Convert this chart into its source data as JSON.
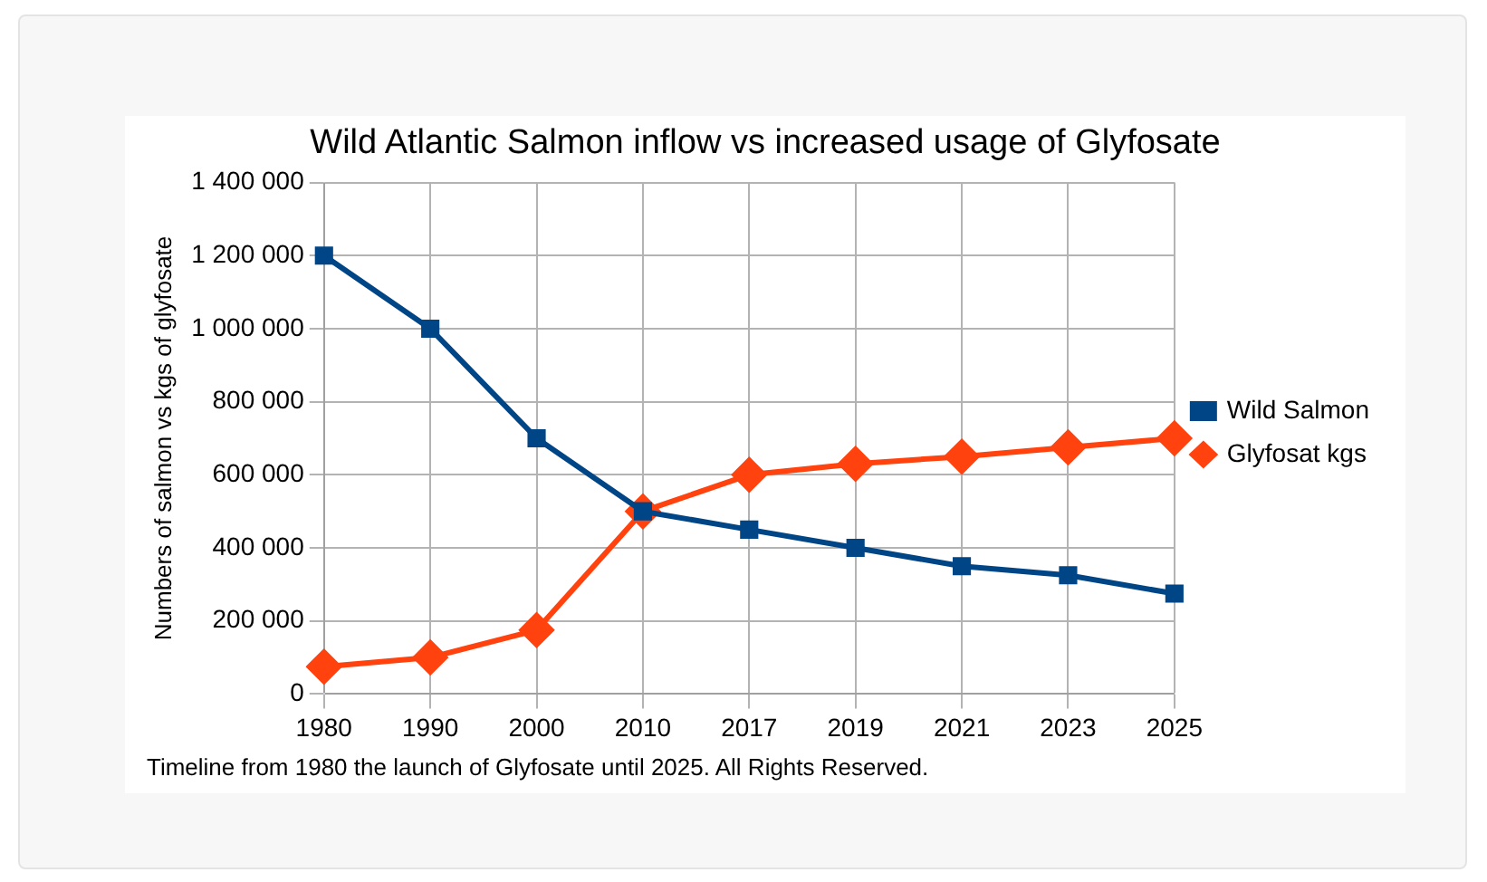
{
  "chart_data": {
    "type": "line",
    "title": "Wild Atlantic Salmon inflow vs increased usage of Glyfosate",
    "ylabel": "Numbers of salmon vs kgs of glyfosate",
    "categories": [
      "1980",
      "1990",
      "2000",
      "2010",
      "2017",
      "2019",
      "2021",
      "2023",
      "2025"
    ],
    "series": [
      {
        "name": "Wild Salmon",
        "color": "#004586",
        "marker": "square",
        "values": [
          1200000,
          1000000,
          700000,
          500000,
          450000,
          400000,
          350000,
          325000,
          275000
        ]
      },
      {
        "name": "Glyfosat kgs",
        "color": "#ff420e",
        "marker": "diamond",
        "values": [
          75000,
          100000,
          175000,
          500000,
          600000,
          630000,
          650000,
          675000,
          700000
        ]
      }
    ],
    "ylim": [
      0,
      1400000
    ],
    "yticks": [
      0,
      {
        "value": 200000,
        "label": "200 000"
      },
      {
        "value": 400000,
        "label": "400 000"
      },
      {
        "value": 600000,
        "label": "600 000"
      },
      {
        "value": 800000,
        "label": "800 000"
      },
      {
        "value": 1000000,
        "label": "1 000 000"
      },
      {
        "value": 1200000,
        "label": "1 200 000"
      },
      {
        "value": 1400000,
        "label": "1 400 000"
      }
    ],
    "grid": true,
    "legend": "right",
    "line_style": "solid",
    "annotations": [
      "Timeline from 1980 the launch of Glyfosate until 2025. All Rights Reserved."
    ]
  }
}
